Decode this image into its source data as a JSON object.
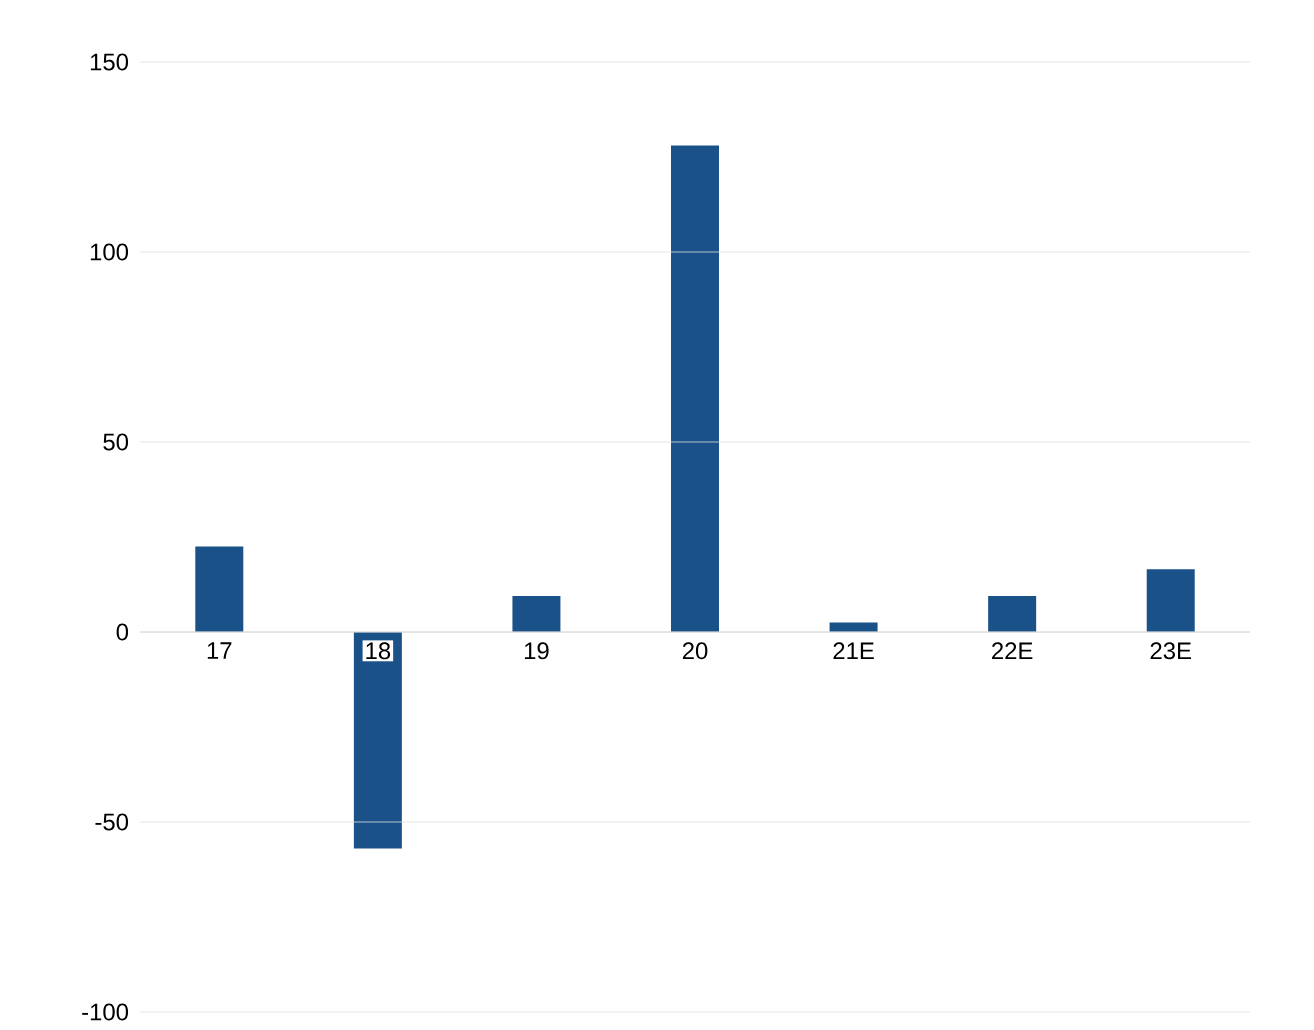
{
  "chart_data": {
    "type": "bar",
    "categories": [
      "17",
      "18",
      "19",
      "20",
      "21E",
      "22E",
      "23E"
    ],
    "values": [
      22.5,
      -57,
      9.5,
      128,
      2.5,
      9.5,
      16.5
    ],
    "color": "#1a5189",
    "ylim": [
      -100,
      150
    ],
    "yticks": [
      -100,
      -50,
      0,
      50,
      100,
      150
    ],
    "grid": "y"
  }
}
